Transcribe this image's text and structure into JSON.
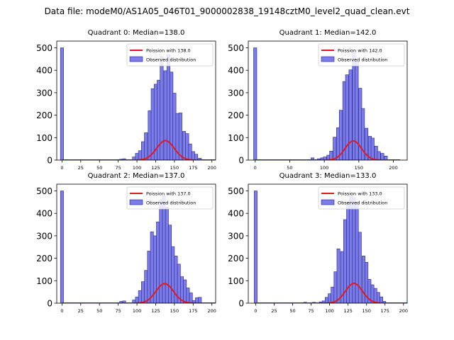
{
  "figure": {
    "suptitle": "Data file: modeM0/AS1A05_046T01_9000002838_19148cztM0_level2_quad_clean.evt"
  },
  "colors": {
    "bar_fill": "#7b7bea",
    "bar_edge": "#2a2a8a",
    "poisson_line": "#e31a1c"
  },
  "chart_data": [
    {
      "type": "bar",
      "title": "Quadrant 0: Median=138.0",
      "median": 138.0,
      "legend": [
        "Poission with 138.0",
        "Observed distribution"
      ],
      "legend_position": "top-right",
      "xlim": [
        -7,
        205
      ],
      "ylim": [
        0,
        500
      ],
      "xticks": [
        0,
        25,
        50,
        75,
        100,
        125,
        150,
        175,
        200
      ],
      "yticks": [
        0,
        100,
        200,
        300,
        400,
        500
      ],
      "bin_width": 4.2,
      "bins": [
        {
          "x": 0,
          "y": 500
        },
        {
          "x": 79,
          "y": 4
        },
        {
          "x": 83,
          "y": 6
        },
        {
          "x": 96,
          "y": 14
        },
        {
          "x": 100,
          "y": 30
        },
        {
          "x": 104,
          "y": 42
        },
        {
          "x": 108,
          "y": 82
        },
        {
          "x": 112,
          "y": 122
        },
        {
          "x": 117,
          "y": 220
        },
        {
          "x": 121,
          "y": 318
        },
        {
          "x": 125,
          "y": 338
        },
        {
          "x": 129,
          "y": 356
        },
        {
          "x": 133,
          "y": 462
        },
        {
          "x": 138,
          "y": 398
        },
        {
          "x": 142,
          "y": 470
        },
        {
          "x": 146,
          "y": 392
        },
        {
          "x": 150,
          "y": 298
        },
        {
          "x": 154,
          "y": 208
        },
        {
          "x": 158,
          "y": 210
        },
        {
          "x": 163,
          "y": 128
        },
        {
          "x": 167,
          "y": 118
        },
        {
          "x": 171,
          "y": 72
        },
        {
          "x": 175,
          "y": 38
        },
        {
          "x": 179,
          "y": 26
        },
        {
          "x": 184,
          "y": 8
        }
      ]
    },
    {
      "type": "bar",
      "title": "Quadrant 1: Median=142.0",
      "median": 142.0,
      "legend": [
        "Poission with 142.0",
        "Observed distribution"
      ],
      "legend_position": "top-right",
      "xlim": [
        -10,
        220
      ],
      "ylim": [
        0,
        500
      ],
      "xticks": [
        0,
        50,
        100,
        150,
        200
      ],
      "yticks": [
        0,
        100,
        200,
        300,
        400,
        500
      ],
      "bin_width": 4.6,
      "bins": [
        {
          "x": 0,
          "y": 500
        },
        {
          "x": 83,
          "y": 10
        },
        {
          "x": 92,
          "y": 6
        },
        {
          "x": 97,
          "y": 10
        },
        {
          "x": 101,
          "y": 14
        },
        {
          "x": 106,
          "y": 22
        },
        {
          "x": 110,
          "y": 40
        },
        {
          "x": 115,
          "y": 102
        },
        {
          "x": 120,
          "y": 144
        },
        {
          "x": 124,
          "y": 222
        },
        {
          "x": 129,
          "y": 350
        },
        {
          "x": 133,
          "y": 380
        },
        {
          "x": 138,
          "y": 402
        },
        {
          "x": 143,
          "y": 478
        },
        {
          "x": 147,
          "y": 440
        },
        {
          "x": 152,
          "y": 320
        },
        {
          "x": 156,
          "y": 230
        },
        {
          "x": 161,
          "y": 142
        },
        {
          "x": 166,
          "y": 106
        },
        {
          "x": 170,
          "y": 98
        },
        {
          "x": 175,
          "y": 62
        },
        {
          "x": 179,
          "y": 38
        },
        {
          "x": 184,
          "y": 30
        },
        {
          "x": 189,
          "y": 18
        }
      ]
    },
    {
      "type": "bar",
      "title": "Quadrant 2: Median=137.0",
      "median": 137.0,
      "legend": [
        "Poission with 137.0",
        "Observed distribution"
      ],
      "legend_position": "top-right",
      "xlim": [
        -7,
        205
      ],
      "ylim": [
        0,
        500
      ],
      "xticks": [
        0,
        25,
        50,
        75,
        100,
        125,
        150,
        175,
        200
      ],
      "yticks": [
        0,
        100,
        200,
        300,
        400,
        500
      ],
      "bin_width": 4.1,
      "bins": [
        {
          "x": 0,
          "y": 500
        },
        {
          "x": 79,
          "y": 8
        },
        {
          "x": 83,
          "y": 10
        },
        {
          "x": 96,
          "y": 14
        },
        {
          "x": 100,
          "y": 28
        },
        {
          "x": 104,
          "y": 56
        },
        {
          "x": 108,
          "y": 96
        },
        {
          "x": 112,
          "y": 146
        },
        {
          "x": 116,
          "y": 232
        },
        {
          "x": 120,
          "y": 318
        },
        {
          "x": 124,
          "y": 300
        },
        {
          "x": 128,
          "y": 362
        },
        {
          "x": 132,
          "y": 458
        },
        {
          "x": 136,
          "y": 478
        },
        {
          "x": 140,
          "y": 428
        },
        {
          "x": 144,
          "y": 348
        },
        {
          "x": 148,
          "y": 252
        },
        {
          "x": 152,
          "y": 210
        },
        {
          "x": 156,
          "y": 174
        },
        {
          "x": 160,
          "y": 118
        },
        {
          "x": 164,
          "y": 104
        },
        {
          "x": 168,
          "y": 68
        },
        {
          "x": 172,
          "y": 46
        },
        {
          "x": 176,
          "y": 12
        },
        {
          "x": 180,
          "y": 24
        },
        {
          "x": 184,
          "y": 26
        }
      ]
    },
    {
      "type": "bar",
      "title": "Quadrant 3: Median=133.0",
      "median": 133.0,
      "legend": [
        "Poission with 133.0",
        "Observed distribution"
      ],
      "legend_position": "top-right",
      "xlim": [
        -10,
        205
      ],
      "ylim": [
        0,
        500
      ],
      "xticks": [
        0,
        25,
        50,
        75,
        100,
        125,
        150,
        175,
        200
      ],
      "yticks": [
        0,
        100,
        200,
        300,
        400,
        500
      ],
      "bin_width": 4.1,
      "bins": [
        {
          "x": 0,
          "y": 500
        },
        {
          "x": 67,
          "y": 4
        },
        {
          "x": 79,
          "y": 4
        },
        {
          "x": 88,
          "y": 6
        },
        {
          "x": 92,
          "y": 10
        },
        {
          "x": 96,
          "y": 26
        },
        {
          "x": 100,
          "y": 42
        },
        {
          "x": 104,
          "y": 72
        },
        {
          "x": 108,
          "y": 140
        },
        {
          "x": 112,
          "y": 242
        },
        {
          "x": 117,
          "y": 230
        },
        {
          "x": 121,
          "y": 372
        },
        {
          "x": 125,
          "y": 448
        },
        {
          "x": 129,
          "y": 478
        },
        {
          "x": 133,
          "y": 470
        },
        {
          "x": 137,
          "y": 448
        },
        {
          "x": 141,
          "y": 316
        },
        {
          "x": 146,
          "y": 210
        },
        {
          "x": 150,
          "y": 182
        },
        {
          "x": 154,
          "y": 106
        },
        {
          "x": 158,
          "y": 82
        },
        {
          "x": 162,
          "y": 66
        },
        {
          "x": 166,
          "y": 48
        },
        {
          "x": 170,
          "y": 28
        },
        {
          "x": 174,
          "y": 8
        }
      ]
    }
  ]
}
